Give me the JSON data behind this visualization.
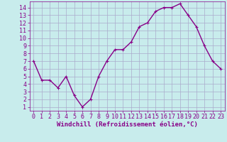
{
  "x": [
    0,
    1,
    2,
    3,
    4,
    5,
    6,
    7,
    8,
    9,
    10,
    11,
    12,
    13,
    14,
    15,
    16,
    17,
    18,
    19,
    20,
    21,
    22,
    23
  ],
  "y": [
    7.0,
    4.5,
    4.5,
    3.5,
    5.0,
    2.5,
    1.0,
    2.0,
    5.0,
    7.0,
    8.5,
    8.5,
    9.5,
    11.5,
    12.0,
    13.5,
    14.0,
    14.0,
    14.5,
    13.0,
    11.5,
    9.0,
    7.0,
    6.0
  ],
  "line_color": "#880088",
  "marker": "+",
  "marker_size": 3.5,
  "bg_color": "#c8ecec",
  "grid_color": "#aaaacc",
  "xlabel": "Windchill (Refroidissement éolien,°C)",
  "xlim": [
    -0.5,
    23.5
  ],
  "ylim": [
    0.5,
    14.8
  ],
  "yticks": [
    1,
    2,
    3,
    4,
    5,
    6,
    7,
    8,
    9,
    10,
    11,
    12,
    13,
    14
  ],
  "xticks": [
    0,
    1,
    2,
    3,
    4,
    5,
    6,
    7,
    8,
    9,
    10,
    11,
    12,
    13,
    14,
    15,
    16,
    17,
    18,
    19,
    20,
    21,
    22,
    23
  ],
  "tick_label_size": 6,
  "xlabel_size": 6.5,
  "line_width": 1.0
}
